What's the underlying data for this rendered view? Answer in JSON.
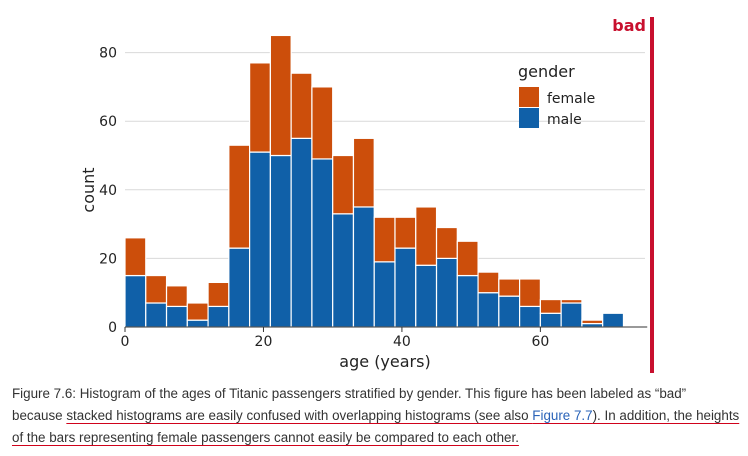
{
  "chart_data": {
    "type": "bar",
    "stacked": true,
    "xlabel": "age (years)",
    "ylabel": "count",
    "xlim": [
      0,
      75
    ],
    "ylim": [
      0,
      85
    ],
    "xticks": [
      0,
      20,
      40,
      60
    ],
    "yticks": [
      0,
      20,
      40,
      60,
      80
    ],
    "bin_width": 3,
    "bins": [
      0,
      3,
      6,
      9,
      12,
      15,
      18,
      21,
      24,
      27,
      30,
      33,
      36,
      39,
      42,
      45,
      48,
      51,
      54,
      57,
      60,
      63,
      66,
      69
    ],
    "legend": {
      "title": "gender",
      "position": "top-right"
    },
    "series": [
      {
        "name": "male",
        "color": "#1060a8",
        "values": [
          15,
          7,
          6,
          2,
          6,
          23,
          51,
          50,
          55,
          49,
          33,
          35,
          19,
          23,
          18,
          20,
          15,
          10,
          9,
          6,
          4,
          7,
          1,
          4
        ]
      },
      {
        "name": "female",
        "color": "#cc4e0b",
        "values": [
          11,
          8,
          6,
          5,
          7,
          30,
          26,
          35,
          19,
          21,
          17,
          20,
          13,
          9,
          17,
          9,
          10,
          6,
          5,
          8,
          4,
          1,
          1,
          0
        ]
      }
    ],
    "grid": true
  },
  "badge": {
    "label": "bad",
    "color": "#c8102e"
  },
  "caption": {
    "part1": "Figure 7.6: Histogram of the ages of Titanic passengers stratified by gender. This figure has been labeled as “bad” because ",
    "underlined1": "stacked histograms are easily confused with overlapping histograms (see also ",
    "link": "Figure 7.7",
    "underlined2": "). In addition, the heights of the bars representing female passengers cannot easily be compared to each other."
  }
}
